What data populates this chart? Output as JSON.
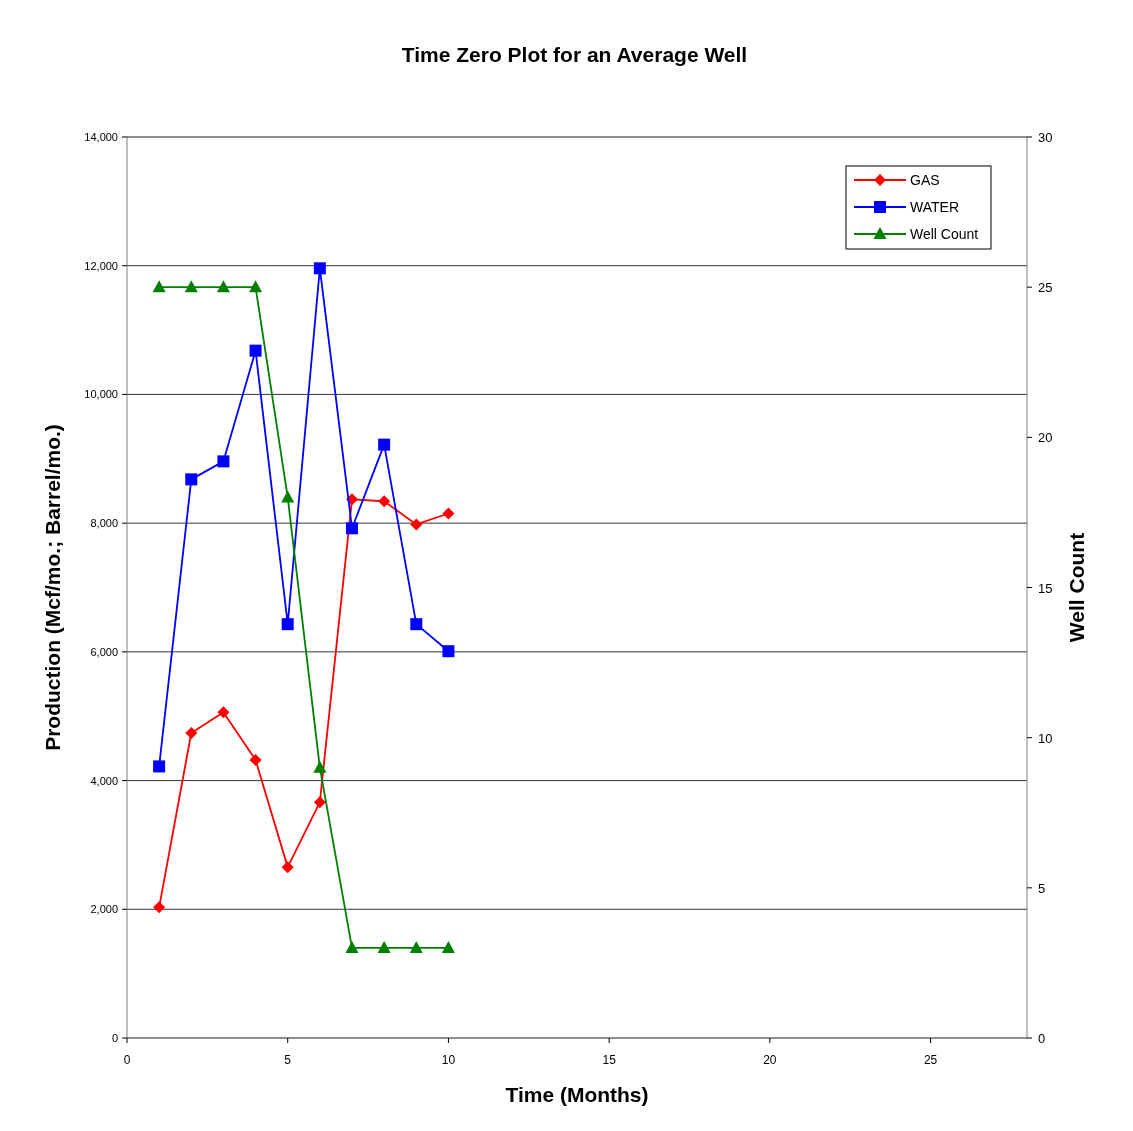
{
  "chart_data": {
    "type": "line",
    "title": "Time Zero Plot for an Average Well",
    "xlabel": "Time (Months)",
    "ylabel": "Production (Mcf/mo.; Barrel/mo.)",
    "y2label": "Well Count",
    "x": [
      1,
      2,
      3,
      4,
      5,
      6,
      7,
      8,
      9,
      10
    ],
    "xlim": [
      0,
      28
    ],
    "xticks": [
      0,
      5,
      10,
      15,
      20,
      25
    ],
    "ylim": [
      0,
      14000
    ],
    "yticks": [
      0,
      {
        "value": 2000,
        "label": "2,000"
      },
      {
        "value": 4000,
        "label": "4,000"
      },
      {
        "value": 6000,
        "label": "6,000"
      },
      {
        "value": 8000,
        "label": "8,000"
      },
      {
        "value": 10000,
        "label": "10,000"
      },
      {
        "value": 12000,
        "label": "12,000"
      },
      {
        "value": 14000,
        "label": "14,000"
      }
    ],
    "y2lim": [
      0,
      30
    ],
    "y2ticks": [
      0,
      5,
      10,
      15,
      20,
      25,
      30
    ],
    "grid": "y",
    "legend": "top right",
    "series": [
      {
        "name": "GAS",
        "color": "#ff0000",
        "marker": "diamond",
        "values": [
          2030,
          4740,
          5060,
          4320,
          2655,
          3665,
          8370,
          8340,
          7980,
          8150
        ]
      },
      {
        "name": "WATER",
        "color": "#0000ff",
        "marker": "square",
        "values": [
          4220,
          8680,
          8960,
          10680,
          6430,
          11960,
          7920,
          9220,
          6430,
          6010
        ]
      },
      {
        "name": "Well Count",
        "color": "#008000",
        "marker": "triangle",
        "axis": "y2",
        "values": [
          25,
          25,
          25,
          25,
          18,
          9,
          3,
          3,
          3,
          3
        ]
      }
    ]
  }
}
